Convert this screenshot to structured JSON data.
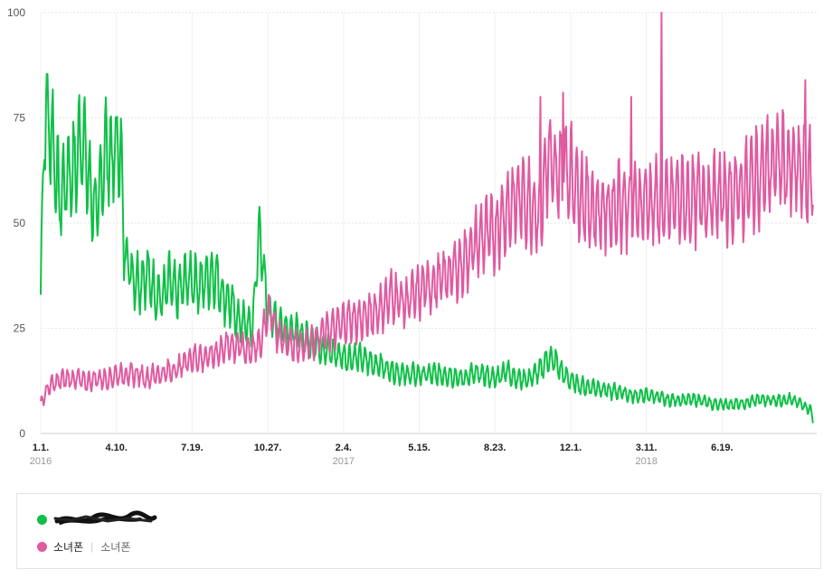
{
  "chart_data": {
    "type": "line",
    "ylim": [
      0,
      100
    ],
    "yticks": [
      "0",
      "25",
      "50",
      "75",
      "100"
    ],
    "x_tick_labels": [
      {
        "label": "1.1.",
        "year": "2016",
        "day": 0
      },
      {
        "label": "4.10.",
        "year": "",
        "day": 100
      },
      {
        "label": "7.19.",
        "year": "",
        "day": 200
      },
      {
        "label": "10.27.",
        "year": "",
        "day": 300
      },
      {
        "label": "2.4.",
        "year": "2017",
        "day": 400
      },
      {
        "label": "5.15.",
        "year": "",
        "day": 500
      },
      {
        "label": "8.23.",
        "year": "",
        "day": 600
      },
      {
        "label": "12.1.",
        "year": "",
        "day": 700
      },
      {
        "label": "3.11.",
        "year": "2018",
        "day": 800
      },
      {
        "label": "6.19.",
        "year": "",
        "day": 900
      }
    ],
    "x_range_days": [
      0,
      1025
    ],
    "grid": "horizontal-dotted",
    "series": [
      {
        "name": "",
        "color": "#0ec047",
        "points": [
          [
            0,
            33
          ],
          [
            5,
            77
          ],
          [
            15,
            71
          ],
          [
            25,
            55
          ],
          [
            35,
            62
          ],
          [
            45,
            63
          ],
          [
            55,
            72
          ],
          [
            65,
            58
          ],
          [
            75,
            52
          ],
          [
            85,
            68
          ],
          [
            95,
            65
          ],
          [
            105,
            70
          ],
          [
            110,
            45
          ],
          [
            120,
            38
          ],
          [
            130,
            36
          ],
          [
            140,
            38
          ],
          [
            150,
            34
          ],
          [
            160,
            32
          ],
          [
            170,
            36
          ],
          [
            180,
            33
          ],
          [
            190,
            36
          ],
          [
            200,
            37
          ],
          [
            210,
            35
          ],
          [
            220,
            37
          ],
          [
            230,
            38
          ],
          [
            240,
            33
          ],
          [
            250,
            31
          ],
          [
            260,
            27
          ],
          [
            270,
            26
          ],
          [
            280,
            25
          ],
          [
            285,
            40
          ],
          [
            290,
            49
          ],
          [
            295,
            36
          ],
          [
            300,
            30
          ],
          [
            305,
            28
          ],
          [
            315,
            26
          ],
          [
            330,
            25
          ],
          [
            345,
            23
          ],
          [
            360,
            22
          ],
          [
            375,
            20
          ],
          [
            390,
            19
          ],
          [
            405,
            18
          ],
          [
            420,
            18
          ],
          [
            435,
            17
          ],
          [
            450,
            16
          ],
          [
            465,
            15
          ],
          [
            480,
            14
          ],
          [
            495,
            14
          ],
          [
            510,
            14
          ],
          [
            525,
            14
          ],
          [
            540,
            14
          ],
          [
            555,
            13
          ],
          [
            570,
            14
          ],
          [
            585,
            14
          ],
          [
            600,
            13
          ],
          [
            615,
            15
          ],
          [
            630,
            13
          ],
          [
            645,
            13
          ],
          [
            660,
            15
          ],
          [
            670,
            18
          ],
          [
            680,
            17
          ],
          [
            690,
            14
          ],
          [
            705,
            12
          ],
          [
            720,
            11
          ],
          [
            735,
            11
          ],
          [
            750,
            10
          ],
          [
            765,
            10
          ],
          [
            780,
            9
          ],
          [
            795,
            9
          ],
          [
            810,
            9
          ],
          [
            825,
            8
          ],
          [
            840,
            8
          ],
          [
            855,
            8
          ],
          [
            870,
            8
          ],
          [
            885,
            7
          ],
          [
            900,
            7
          ],
          [
            915,
            7
          ],
          [
            930,
            7
          ],
          [
            945,
            8
          ],
          [
            960,
            8
          ],
          [
            975,
            8
          ],
          [
            990,
            8
          ],
          [
            1005,
            7
          ],
          [
            1015,
            6
          ],
          [
            1020,
            4
          ]
        ]
      },
      {
        "name": "소녀폰",
        "color": "#e05aa0",
        "points": [
          [
            0,
            7
          ],
          [
            10,
            11
          ],
          [
            20,
            12
          ],
          [
            30,
            13
          ],
          [
            40,
            13
          ],
          [
            50,
            13
          ],
          [
            60,
            12
          ],
          [
            70,
            13
          ],
          [
            80,
            13
          ],
          [
            90,
            13
          ],
          [
            100,
            14
          ],
          [
            110,
            14
          ],
          [
            120,
            14
          ],
          [
            130,
            14
          ],
          [
            140,
            13
          ],
          [
            150,
            14
          ],
          [
            160,
            14
          ],
          [
            170,
            15
          ],
          [
            180,
            15
          ],
          [
            190,
            17
          ],
          [
            200,
            18
          ],
          [
            210,
            18
          ],
          [
            220,
            18
          ],
          [
            230,
            19
          ],
          [
            240,
            20
          ],
          [
            250,
            21
          ],
          [
            260,
            21
          ],
          [
            270,
            20
          ],
          [
            280,
            20
          ],
          [
            290,
            21
          ],
          [
            300,
            30
          ],
          [
            305,
            28
          ],
          [
            315,
            23
          ],
          [
            330,
            21
          ],
          [
            345,
            21
          ],
          [
            360,
            22
          ],
          [
            375,
            24
          ],
          [
            390,
            25
          ],
          [
            405,
            27
          ],
          [
            420,
            27
          ],
          [
            435,
            28
          ],
          [
            450,
            30
          ],
          [
            465,
            33
          ],
          [
            480,
            31
          ],
          [
            495,
            33
          ],
          [
            510,
            35
          ],
          [
            525,
            36
          ],
          [
            540,
            38
          ],
          [
            555,
            40
          ],
          [
            570,
            44
          ],
          [
            585,
            47
          ],
          [
            600,
            48
          ],
          [
            615,
            53
          ],
          [
            630,
            56
          ],
          [
            645,
            55
          ],
          [
            660,
            52
          ],
          [
            670,
            66
          ],
          [
            680,
            60
          ],
          [
            690,
            65
          ],
          [
            705,
            60
          ],
          [
            720,
            55
          ],
          [
            735,
            53
          ],
          [
            750,
            53
          ],
          [
            765,
            55
          ],
          [
            780,
            54
          ],
          [
            795,
            55
          ],
          [
            810,
            55
          ],
          [
            825,
            54
          ],
          [
            840,
            56
          ],
          [
            855,
            55
          ],
          [
            870,
            56
          ],
          [
            885,
            56
          ],
          [
            900,
            56
          ],
          [
            915,
            57
          ],
          [
            930,
            58
          ],
          [
            945,
            61
          ],
          [
            960,
            63
          ],
          [
            975,
            65
          ],
          [
            990,
            63
          ],
          [
            1005,
            62
          ],
          [
            1015,
            60
          ],
          [
            1020,
            62
          ]
        ]
      }
    ],
    "spikes": [
      {
        "series": 1,
        "day": 820,
        "value": 100
      },
      {
        "series": 1,
        "day": 1010,
        "value": 84
      },
      {
        "series": 1,
        "day": 780,
        "value": 80
      },
      {
        "series": 1,
        "day": 690,
        "value": 81
      },
      {
        "series": 1,
        "day": 660,
        "value": 80
      }
    ]
  },
  "legend": {
    "item1": {
      "label": "",
      "color": "#0ec047"
    },
    "item2": {
      "label": "소녀폰",
      "sub": "소녀폰",
      "color": "#e05aa0"
    }
  }
}
